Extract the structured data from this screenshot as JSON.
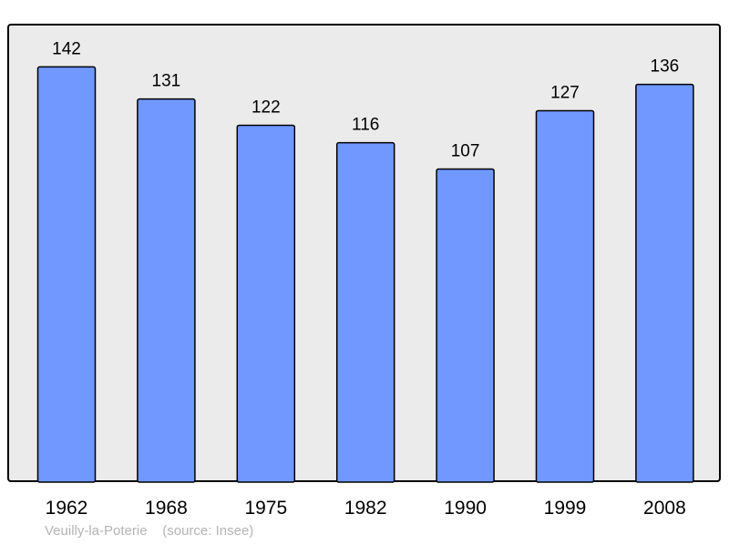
{
  "chart_data": {
    "type": "bar",
    "categories": [
      "1962",
      "1968",
      "1975",
      "1982",
      "1990",
      "1999",
      "2008"
    ],
    "values": [
      142,
      131,
      122,
      116,
      107,
      127,
      136
    ],
    "title": "",
    "xlabel": "",
    "ylabel": "",
    "ylim": [
      0,
      156.5
    ],
    "grid": false,
    "colors": {
      "bar": "#7098ff",
      "plot_background": "#ebebeb",
      "border": "#000000"
    }
  },
  "caption": {
    "place": "Veuilly-la-Poterie",
    "source": "(source: Insee)"
  }
}
